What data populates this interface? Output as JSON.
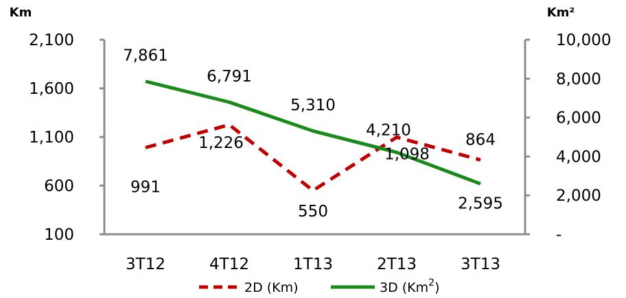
{
  "chart_data": {
    "type": "line",
    "categories": [
      "3T12",
      "4T12",
      "1T13",
      "2T13",
      "3T13"
    ],
    "left_axis": {
      "unit_label": "Km",
      "ylim": [
        100,
        2100
      ],
      "ticks": [
        100,
        600,
        1100,
        1600,
        2100
      ],
      "tick_labels": [
        "100",
        "600",
        "1,100",
        "1,600",
        "2,100"
      ]
    },
    "right_axis": {
      "unit_label": "Km²",
      "ylim": [
        0,
        10000
      ],
      "ticks": [
        0,
        2000,
        4000,
        6000,
        8000,
        10000
      ],
      "tick_labels": [
        "-",
        "2,000",
        "4,000",
        "6,000",
        "8,000",
        "10,000"
      ]
    },
    "series": [
      {
        "name": "2D (Km)",
        "axis": "left",
        "style": "dashed",
        "color": "#c00000",
        "values": [
          991,
          1226,
          550,
          1098,
          864
        ],
        "labels": [
          "991",
          "1,226",
          "550",
          "1,098",
          "864"
        ]
      },
      {
        "name": "3D (Km²)",
        "axis": "right",
        "style": "solid",
        "color": "#1a8a1a",
        "values": [
          7861,
          6791,
          5310,
          4210,
          2595
        ],
        "labels": [
          "7,861",
          "6,791",
          "5,310",
          "4,210",
          "2,595"
        ]
      }
    ],
    "legend": {
      "position": "bottom",
      "items": [
        {
          "name": "2D (Km)",
          "text": "2D (Km)",
          "sup": ""
        },
        {
          "name": "3D (Km²)",
          "text": "3D (Km",
          "sup": "2",
          "suffix": ")"
        }
      ]
    },
    "grid": false
  }
}
